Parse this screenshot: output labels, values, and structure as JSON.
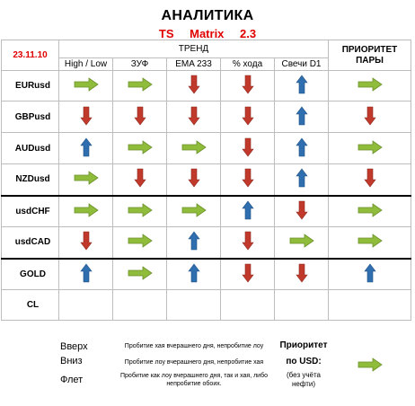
{
  "header": {
    "title": "АНАЛИТИКА",
    "subtitle": [
      "TS",
      "Matrix",
      "2.3"
    ]
  },
  "table": {
    "date": "23.11.10",
    "trend_label": "ТРЕНД",
    "priority_label": "ПРИОРИТЕТ ПАРЫ",
    "columns": [
      "High / Low",
      "ЗУФ",
      "EMA 233",
      "% хода",
      "Свечи D1"
    ],
    "rows": [
      {
        "symbol": "EURusd",
        "cells": [
          "right",
          "right",
          "down",
          "down",
          "up"
        ],
        "priority": "right"
      },
      {
        "symbol": "GBPusd",
        "cells": [
          "down",
          "down",
          "down",
          "down",
          "up"
        ],
        "priority": "down"
      },
      {
        "symbol": "AUDusd",
        "cells": [
          "up",
          "right",
          "right",
          "down",
          "up"
        ],
        "priority": "right"
      },
      {
        "symbol": "NZDusd",
        "cells": [
          "right",
          "down",
          "down",
          "down",
          "up"
        ],
        "priority": "down"
      },
      {
        "symbol": "usdCHF",
        "cells": [
          "right",
          "right",
          "right",
          "up",
          "down"
        ],
        "priority": "right"
      },
      {
        "symbol": "usdCAD",
        "cells": [
          "down",
          "right",
          "up",
          "down",
          "right"
        ],
        "priority": "right"
      },
      {
        "symbol": "GOLD",
        "cells": [
          "up",
          "right",
          "up",
          "down",
          "down"
        ],
        "priority": "up"
      },
      {
        "symbol": "CL",
        "cells": [
          "",
          "",
          "",
          "",
          ""
        ],
        "priority": ""
      }
    ]
  },
  "legend": {
    "up_label": "Вверх",
    "down_label": "Вниз",
    "flat_label": "Флет",
    "up_note": "Пробитие хая вчерашнего дня, непробитие лоу",
    "down_note": "Пробитие лоу вчерашнего дня, непробитие хая",
    "flat_note": "Пробитие как лоу вчерашнего дня, так и хая, либо непробитие обоих.",
    "priority_title": "Приоритет",
    "priority_sub": "по USD:",
    "priority_note": "(без учёта нефти)",
    "priority_arrow": "right"
  },
  "colors": {
    "green": "#8fbc3a",
    "red": "#c0392b",
    "blue": "#2f6fb0",
    "date_red": "#e00000"
  }
}
